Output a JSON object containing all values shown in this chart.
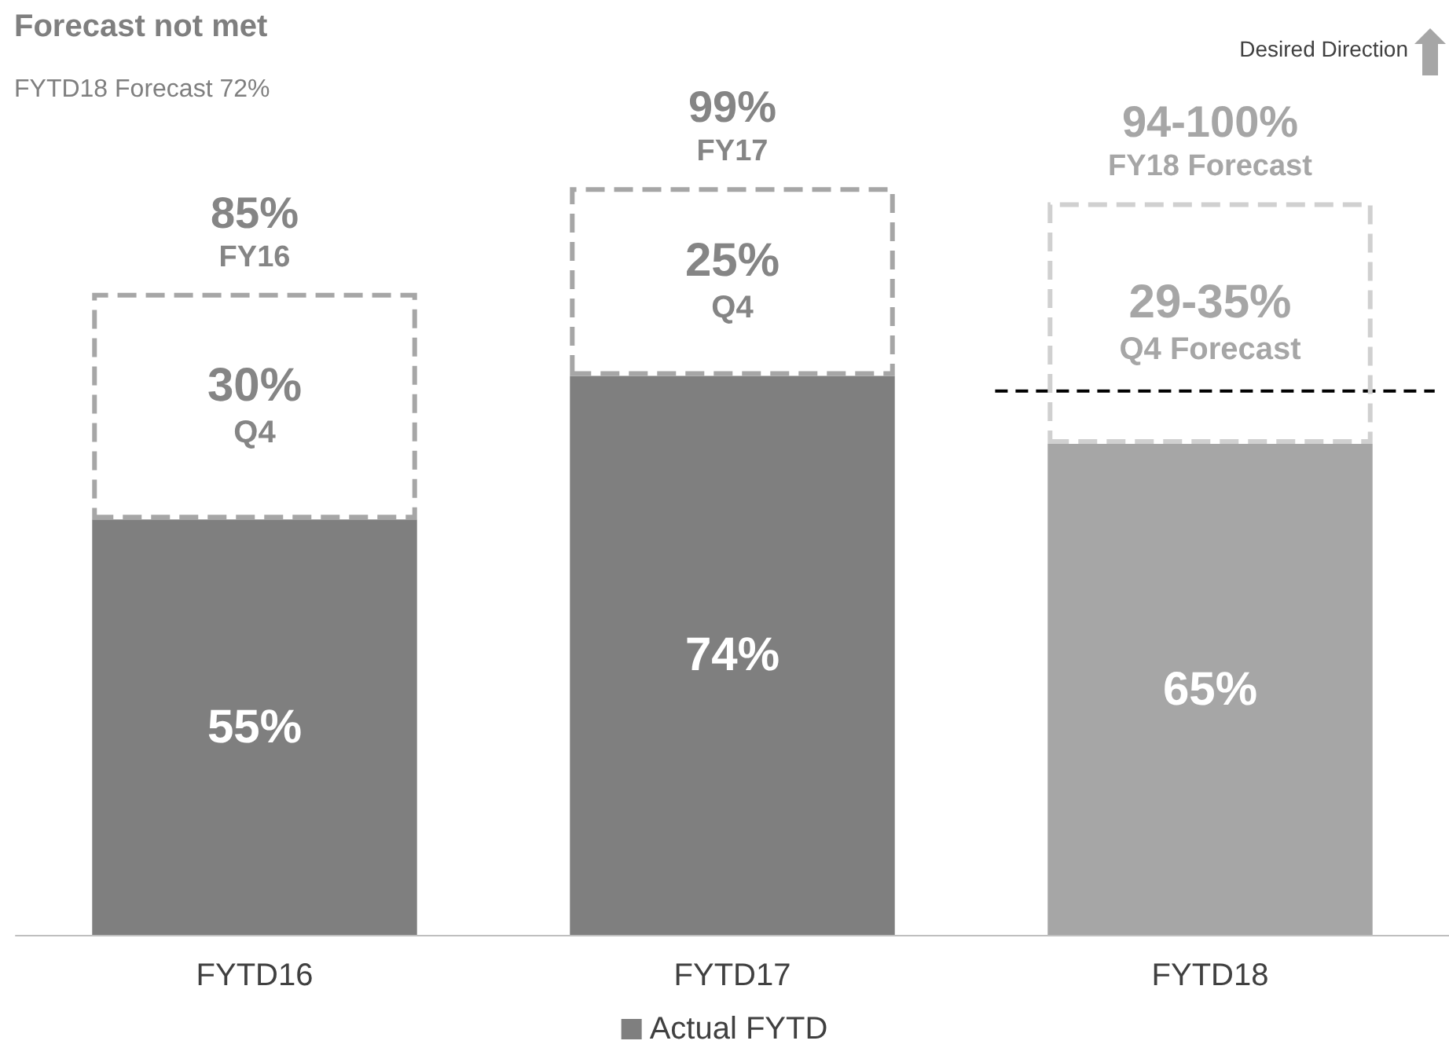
{
  "chart_data": {
    "type": "bar",
    "stacked": true,
    "title": "Forecast not met",
    "subtitle": "FYTD18 Forecast 72%",
    "categories": [
      "FYTD16",
      "FYTD17",
      "FYTD18"
    ],
    "series": [
      {
        "name": "Actual FYTD",
        "color": "#7f7f7f",
        "colors": [
          "#7f7f7f",
          "#7f7f7f",
          "#a6a6a6"
        ],
        "values": [
          55,
          74,
          65
        ],
        "value_labels": [
          "55%",
          "74%",
          "65%"
        ]
      },
      {
        "colors": [
          "#a6a6a6",
          "#a6a6a6",
          "#d0d0d0"
        ],
        "values": [
          30,
          25,
          32
        ],
        "value_labels": [
          "30%\nQ4",
          "25%\nQ4",
          null
        ],
        "line_style": "dashed"
      }
    ],
    "totals": [
      "85%\nFY16",
      "99%\nFY17",
      "94-100%\nFY18 Forecast"
    ],
    "tick_labels": "x",
    "grid": false,
    "legend": "bottom",
    "ref_lines": [
      {
        "axis": "y",
        "value": 72,
        "color": "#000000",
        "line_style": "dashed"
      }
    ],
    "annotations": [
      "Desired Direction",
      "29-35%\nQ4 Forecast"
    ]
  }
}
